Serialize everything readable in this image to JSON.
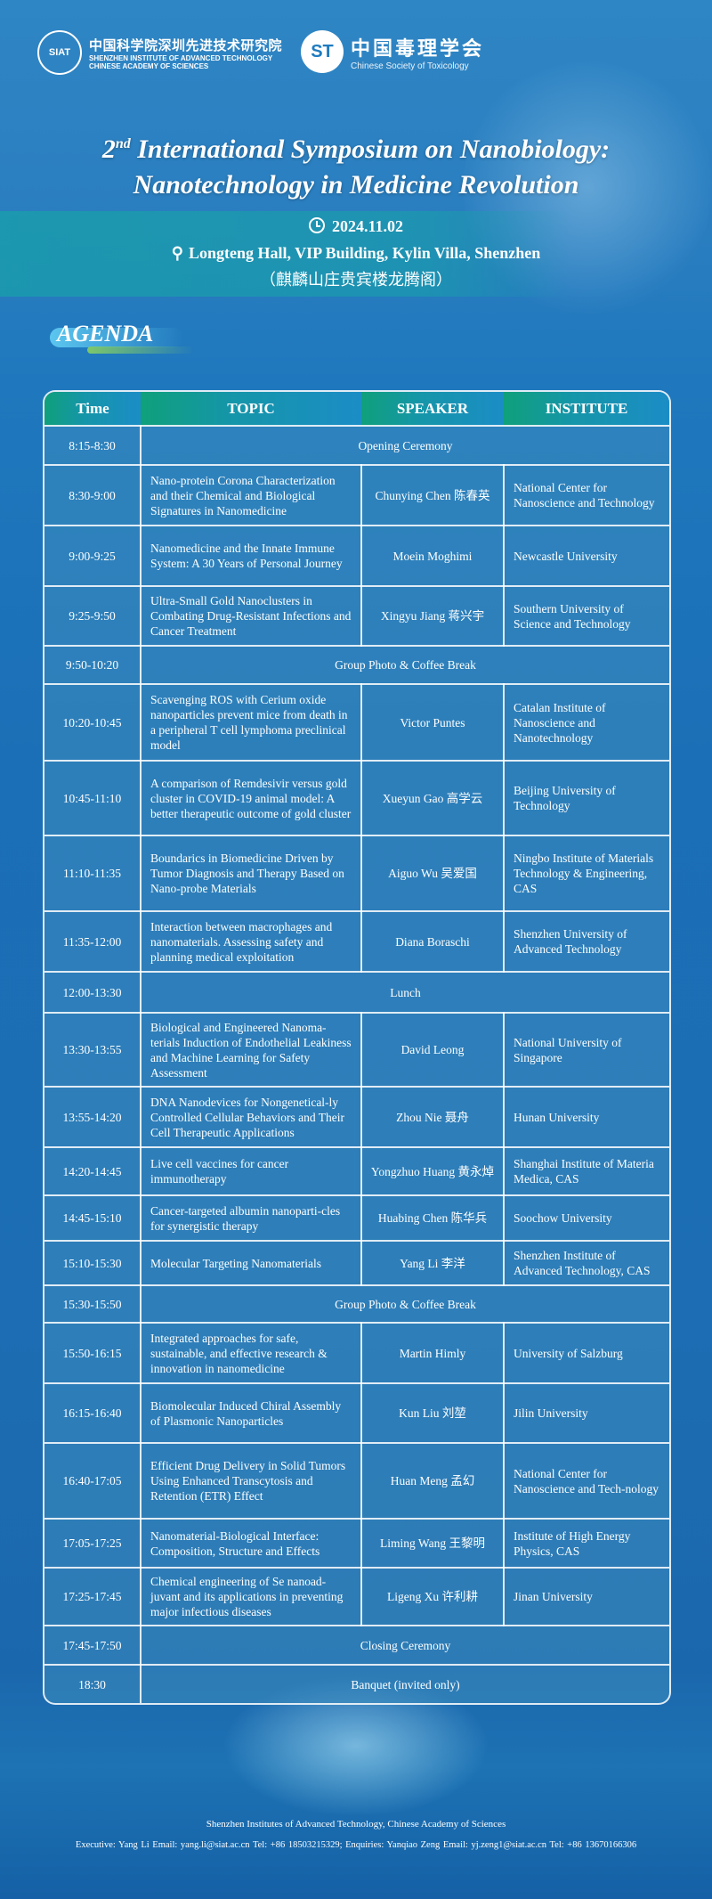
{
  "logos": {
    "siat": {
      "seal_text": "SIAT",
      "name_cn": "中国科学院深圳先进技术研究院",
      "name_en_1": "SHENZHEN INSTITUTE OF ADVANCED TECHNOLOGY",
      "name_en_2": "CHINESE ACADEMY OF SCIENCES"
    },
    "cst": {
      "seal_text": "ST",
      "name_cn": "中国毒理学会",
      "name_en": "Chinese Society of Toxicology"
    }
  },
  "title": {
    "ordinal_num": "2",
    "ordinal_sup": "nd",
    "line1": "International Symposium on Nanobiology:",
    "line2": "Nanotechnology in Medicine Revolution"
  },
  "event": {
    "date": "2024.11.02",
    "location": "Longteng Hall, VIP Building, Kylin Villa, Shenzhen",
    "location_cn": "（麒麟山庄贵宾楼龙腾阁）",
    "date_icon": "clock-icon",
    "location_icon": "map-pin-icon"
  },
  "agenda_label": "AGENDA",
  "table": {
    "headers": [
      "Time",
      "TOPIC",
      "SPEAKER",
      "INSTITUTE"
    ],
    "rows": [
      {
        "time": "8:15-8:30",
        "event": "Opening Ceremony"
      },
      {
        "time": "8:30-9:00",
        "topic": "Nano-protein Corona Characterization and their Chemical and Biological Signatures in Nanomedicine",
        "speaker": "Chunying Chen 陈春英",
        "institute": "National Center for Nanoscience and Technology"
      },
      {
        "time": "9:00-9:25",
        "topic": "Nanomedicine and the Innate Immune System: A 30 Years of Personal Journey",
        "speaker": "Moein Moghimi",
        "institute": "Newcastle University"
      },
      {
        "time": "9:25-9:50",
        "topic": "Ultra-Small Gold Nanoclusters in Combating Drug-Resistant Infections and Cancer Treatment",
        "speaker": "Xingyu Jiang 蒋兴宇",
        "institute": "Southern University of Science and Technology"
      },
      {
        "time": "9:50-10:20",
        "event": "Group Photo & Coffee Break"
      },
      {
        "time": "10:20-10:45",
        "topic": "Scavenging ROS with Cerium oxide nanoparticles prevent mice from death in a peripheral T cell lymphoma preclinical model",
        "speaker": "Victor Puntes",
        "institute": "Catalan Institute of Nanoscience and Nanotechnology"
      },
      {
        "time": "10:45-11:10",
        "topic": "A comparison of Remdesivir versus gold cluster in COVID-19 animal model: A better therapeutic outcome of gold cluster",
        "speaker": "Xueyun Gao 高学云",
        "institute": "Beijing University of Technology"
      },
      {
        "time": "11:10-11:35",
        "topic": "Boundarics in Biomedicine Driven by Tumor Diagnosis and Therapy Based on Nano-probe Materials",
        "speaker": "Aiguo Wu 吴爱国",
        "institute": "Ningbo Institute of Materials Technology & Engineering, CAS"
      },
      {
        "time": "11:35-12:00",
        "topic": "Interaction between macrophages and nanomaterials. Assessing safety and planning medical exploitation",
        "speaker": "Diana Boraschi",
        "institute": "Shenzhen University of Advanced Technology"
      },
      {
        "time": "12:00-13:30",
        "event": "Lunch"
      },
      {
        "time": "13:30-13:55",
        "topic": "Biological and Engineered Nanoma-terials Induction of Endothelial Leakiness and Machine Learning for Safety Assessment",
        "speaker": "David Leong",
        "institute": "National University of Singapore"
      },
      {
        "time": "13:55-14:20",
        "topic": "DNA Nanodevices for Nongenetical-ly Controlled Cellular Behaviors and Their Cell Therapeutic Applications",
        "speaker": "Zhou Nie 聂舟",
        "institute": "Hunan University"
      },
      {
        "time": "14:20-14:45",
        "topic": "Live cell vaccines for cancer immunotherapy",
        "speaker": "Yongzhuo Huang 黄永焯",
        "institute": "Shanghai Institute of Materia Medica, CAS"
      },
      {
        "time": "14:45-15:10",
        "topic": "Cancer-targeted albumin nanoparti-cles for synergistic therapy",
        "speaker": "Huabing Chen 陈华兵",
        "institute": "Soochow University"
      },
      {
        "time": "15:10-15:30",
        "topic": "Molecular Targeting Nanomaterials",
        "speaker": "Yang Li 李洋",
        "institute": "Shenzhen Institute of Advanced Technology, CAS"
      },
      {
        "time": "15:30-15:50",
        "event": "Group Photo & Coffee Break"
      },
      {
        "time": "15:50-16:15",
        "topic": "Integrated approaches for safe, sustainable, and effective research & innovation in nanomedicine",
        "speaker": "Martin Himly",
        "institute": "University of Salzburg"
      },
      {
        "time": "16:15-16:40",
        "topic": "Biomolecular Induced Chiral Assembly of Plasmonic Nanoparticles",
        "speaker": "Kun Liu 刘堃",
        "institute": "Jilin University"
      },
      {
        "time": "16:40-17:05",
        "topic": "Efficient Drug Delivery in Solid Tumors Using Enhanced Transcytosis and Retention (ETR) Effect",
        "speaker": "Huan Meng 孟幻",
        "institute": "National Center for Nanoscience and Tech-nology"
      },
      {
        "time": "17:05-17:25",
        "topic": "Nanomaterial-Biological Interface: Composition, Structure and Effects",
        "speaker": "Liming Wang 王黎明",
        "institute": "Institute of High Energy Physics, CAS"
      },
      {
        "time": "17:25-17:45",
        "topic": "Chemical engineering of Se nanoad-juvant and its applications in preventing major infectious diseases",
        "speaker": "Ligeng Xu 许利耕",
        "institute": "Jinan University"
      },
      {
        "time": "17:45-17:50",
        "event": "Closing Ceremony"
      },
      {
        "time": "18:30",
        "event": "Banquet (invited only)"
      }
    ]
  },
  "footer": {
    "org": "Shenzhen Institutes of Advanced Technology, Chinese Academy of Sciences",
    "contact": "Executive: Yang Li     Email: yang.li@siat.ac.cn     Tel: +86 18503215329;     Enquiries: Yanqiao Zeng Email: yj.zeng1@siat.ac.cn   Tel: +86 13670166306"
  },
  "colors": {
    "background": "#1b6fb6",
    "header_green": "#0fa07b",
    "header_blue": "#1b8dc6",
    "band_teal": "#18a0aa"
  }
}
